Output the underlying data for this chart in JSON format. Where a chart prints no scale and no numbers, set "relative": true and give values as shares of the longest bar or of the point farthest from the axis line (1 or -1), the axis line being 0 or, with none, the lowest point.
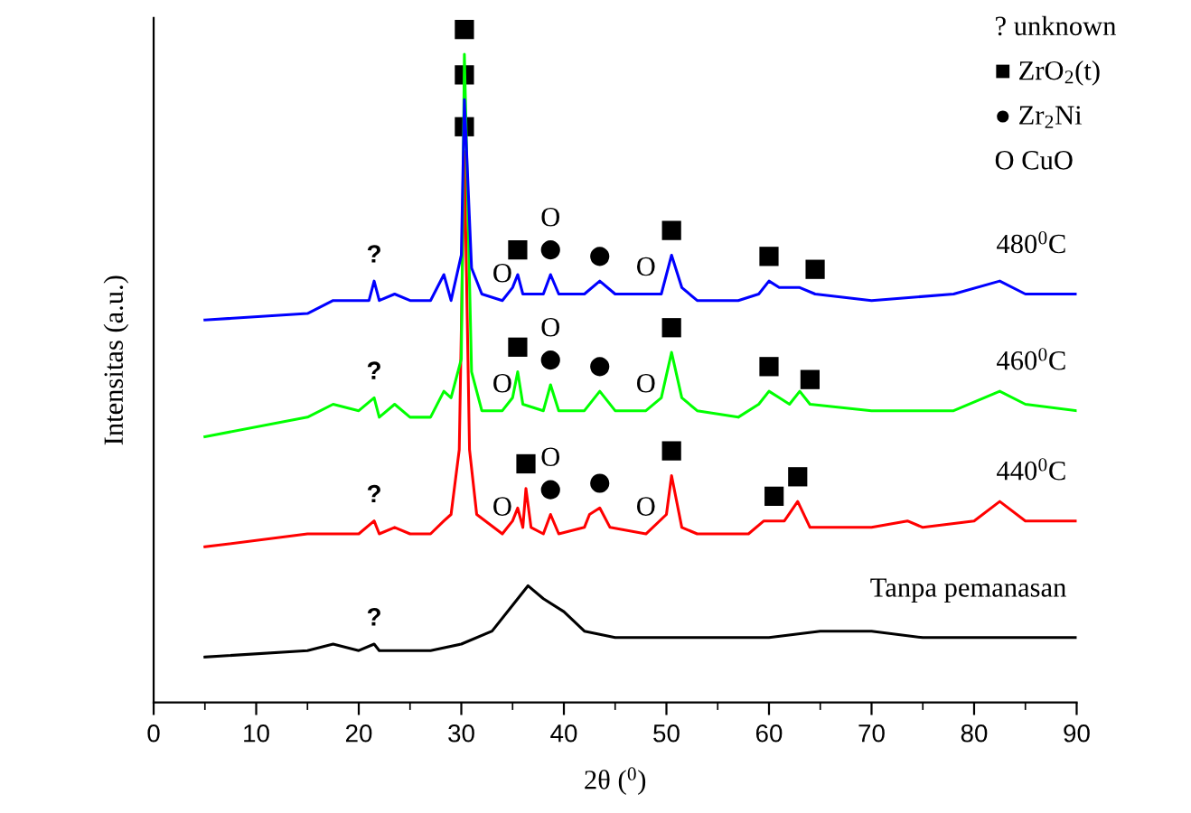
{
  "chart_data": {
    "type": "line",
    "relative": true,
    "xlabel": "2θ ($^{0}$)",
    "ylabel": "Intensitas (a.u.)",
    "xlim": [
      0,
      90
    ],
    "xticks": [
      0,
      10,
      20,
      30,
      40,
      50,
      60,
      70,
      80,
      90
    ],
    "grid": false,
    "marker": "none",
    "line_style": "solid",
    "series": [
      {
        "name": "480$^{0}$C",
        "color": "#0000ff",
        "x": [
          5,
          15,
          17.5,
          19,
          20,
          21,
          21.5,
          22,
          23.5,
          25,
          27,
          28.3,
          29,
          30,
          30.3,
          31,
          32,
          34,
          35,
          35.5,
          36,
          38,
          38.7,
          39.5,
          42,
          43.5,
          45,
          48,
          49.5,
          50.5,
          51.5,
          53,
          57,
          59,
          60,
          61,
          63,
          64.5,
          70,
          78,
          82.5,
          85,
          90
        ],
        "values": [
          0.59,
          0.6,
          0.62,
          0.62,
          0.62,
          0.62,
          0.65,
          0.62,
          0.63,
          0.62,
          0.62,
          0.66,
          0.62,
          0.69,
          0.93,
          0.67,
          0.63,
          0.62,
          0.64,
          0.66,
          0.63,
          0.63,
          0.66,
          0.63,
          0.63,
          0.65,
          0.63,
          0.63,
          0.63,
          0.69,
          0.64,
          0.62,
          0.62,
          0.63,
          0.65,
          0.64,
          0.64,
          0.63,
          0.62,
          0.63,
          0.65,
          0.63,
          0.63
        ]
      },
      {
        "name": "460$^{0}$C",
        "color": "#00ff00",
        "x": [
          5,
          15,
          17.5,
          20,
          21.5,
          22,
          23.5,
          25,
          27,
          28.3,
          29,
          30,
          30.3,
          31,
          32,
          34,
          35,
          35.5,
          36,
          38,
          38.7,
          39.5,
          42,
          43.5,
          45,
          48,
          49.5,
          50.5,
          51.5,
          53,
          57,
          59,
          60,
          61,
          62,
          63,
          64,
          70,
          78,
          82.5,
          85,
          90
        ],
        "values": [
          0.41,
          0.44,
          0.46,
          0.45,
          0.47,
          0.44,
          0.46,
          0.44,
          0.44,
          0.48,
          0.47,
          0.53,
          1,
          0.51,
          0.45,
          0.45,
          0.47,
          0.51,
          0.46,
          0.45,
          0.49,
          0.45,
          0.45,
          0.48,
          0.45,
          0.45,
          0.47,
          0.54,
          0.47,
          0.45,
          0.44,
          0.46,
          0.48,
          0.47,
          0.46,
          0.48,
          0.46,
          0.45,
          0.45,
          0.48,
          0.46,
          0.45
        ]
      },
      {
        "name": "440$^{0}$C",
        "color": "#ff0000",
        "x": [
          5,
          15,
          17.5,
          20,
          21.5,
          22,
          23.5,
          25,
          27,
          28.3,
          29,
          29.8,
          30.3,
          30.8,
          31.5,
          34,
          35,
          35.5,
          36,
          36.3,
          36.8,
          38,
          38.7,
          39.5,
          42,
          42.5,
          43.5,
          44.5,
          48,
          50,
          50.5,
          51.5,
          53,
          58,
          59.5,
          60.5,
          61.5,
          62.8,
          64,
          70,
          73.5,
          75,
          80,
          82.5,
          85,
          90
        ],
        "values": [
          0.24,
          0.26,
          0.26,
          0.26,
          0.28,
          0.26,
          0.27,
          0.26,
          0.26,
          0.28,
          0.29,
          0.39,
          0.85,
          0.39,
          0.29,
          0.26,
          0.28,
          0.3,
          0.27,
          0.33,
          0.27,
          0.26,
          0.29,
          0.26,
          0.27,
          0.29,
          0.3,
          0.27,
          0.26,
          0.29,
          0.35,
          0.27,
          0.26,
          0.26,
          0.28,
          0.28,
          0.28,
          0.31,
          0.27,
          0.27,
          0.28,
          0.27,
          0.28,
          0.31,
          0.28,
          0.28
        ]
      },
      {
        "name": "Tanpa pemanasan",
        "color": "#000000",
        "x": [
          5,
          15,
          17.5,
          20,
          21.5,
          22,
          23.5,
          27,
          30,
          33,
          35,
          36.5,
          38,
          40,
          42,
          45,
          48,
          55,
          60,
          65,
          70,
          75,
          80,
          90
        ],
        "values": [
          0.07,
          0.08,
          0.09,
          0.08,
          0.09,
          0.08,
          0.08,
          0.08,
          0.09,
          0.11,
          0.15,
          0.18,
          0.16,
          0.14,
          0.11,
          0.1,
          0.1,
          0.1,
          0.1,
          0.11,
          0.11,
          0.1,
          0.1,
          0.1
        ]
      }
    ],
    "annotations": [
      "? unknown",
      "■ ZrO$_{2}$(t)",
      "● Zr$_{2}$Ni",
      "O CuO",
      {
        "text": "■",
        "x": 30.3,
        "y": 1
      },
      {
        "text": "■",
        "x": 30.3,
        "y": 0.93
      },
      {
        "text": "■",
        "x": 30.3,
        "y": 0.85
      },
      {
        "text": "?",
        "x": 21.5,
        "y": 0.65
      },
      {
        "text": "O",
        "x": 34,
        "y": 0.62
      },
      {
        "text": "■",
        "x": 35.5,
        "y": 0.66
      },
      {
        "text": "●",
        "x": 38.7,
        "y": 0.66
      },
      {
        "text": "O",
        "x": 38.7,
        "y": 0.66
      },
      {
        "text": "●",
        "x": 43.5,
        "y": 0.65
      },
      {
        "text": "O",
        "x": 48,
        "y": 0.63
      },
      {
        "text": "■",
        "x": 50.5,
        "y": 0.69
      },
      {
        "text": "■",
        "x": 60,
        "y": 0.65
      },
      {
        "text": "■",
        "x": 64.5,
        "y": 0.63
      },
      {
        "text": "?",
        "x": 21.5,
        "y": 0.47
      },
      {
        "text": "O",
        "x": 34,
        "y": 0.45
      },
      {
        "text": "■",
        "x": 35.5,
        "y": 0.51
      },
      {
        "text": "●",
        "x": 38.7,
        "y": 0.49
      },
      {
        "text": "O",
        "x": 38.7,
        "y": 0.49
      },
      {
        "text": "●",
        "x": 43.5,
        "y": 0.48
      },
      {
        "text": "O",
        "x": 48,
        "y": 0.45
      },
      {
        "text": "■",
        "x": 50.5,
        "y": 0.54
      },
      {
        "text": "■",
        "x": 60,
        "y": 0.48
      },
      {
        "text": "■",
        "x": 64,
        "y": 0.46
      },
      {
        "text": "?",
        "x": 21.5,
        "y": 0.28
      },
      {
        "text": "O",
        "x": 34,
        "y": 0.26
      },
      {
        "text": "■",
        "x": 36.3,
        "y": 0.33
      },
      {
        "text": "●",
        "x": 38.7,
        "y": 0.29
      },
      {
        "text": "O",
        "x": 38.7,
        "y": 0.29
      },
      {
        "text": "●",
        "x": 43.5,
        "y": 0.3
      },
      {
        "text": "O",
        "x": 48,
        "y": 0.26
      },
      {
        "text": "■",
        "x": 50.5,
        "y": 0.35
      },
      {
        "text": "■",
        "x": 60.5,
        "y": 0.28
      },
      {
        "text": "■",
        "x": 62.8,
        "y": 0.31
      },
      {
        "text": "?",
        "x": 21.5,
        "y": 0.09
      }
    ]
  }
}
